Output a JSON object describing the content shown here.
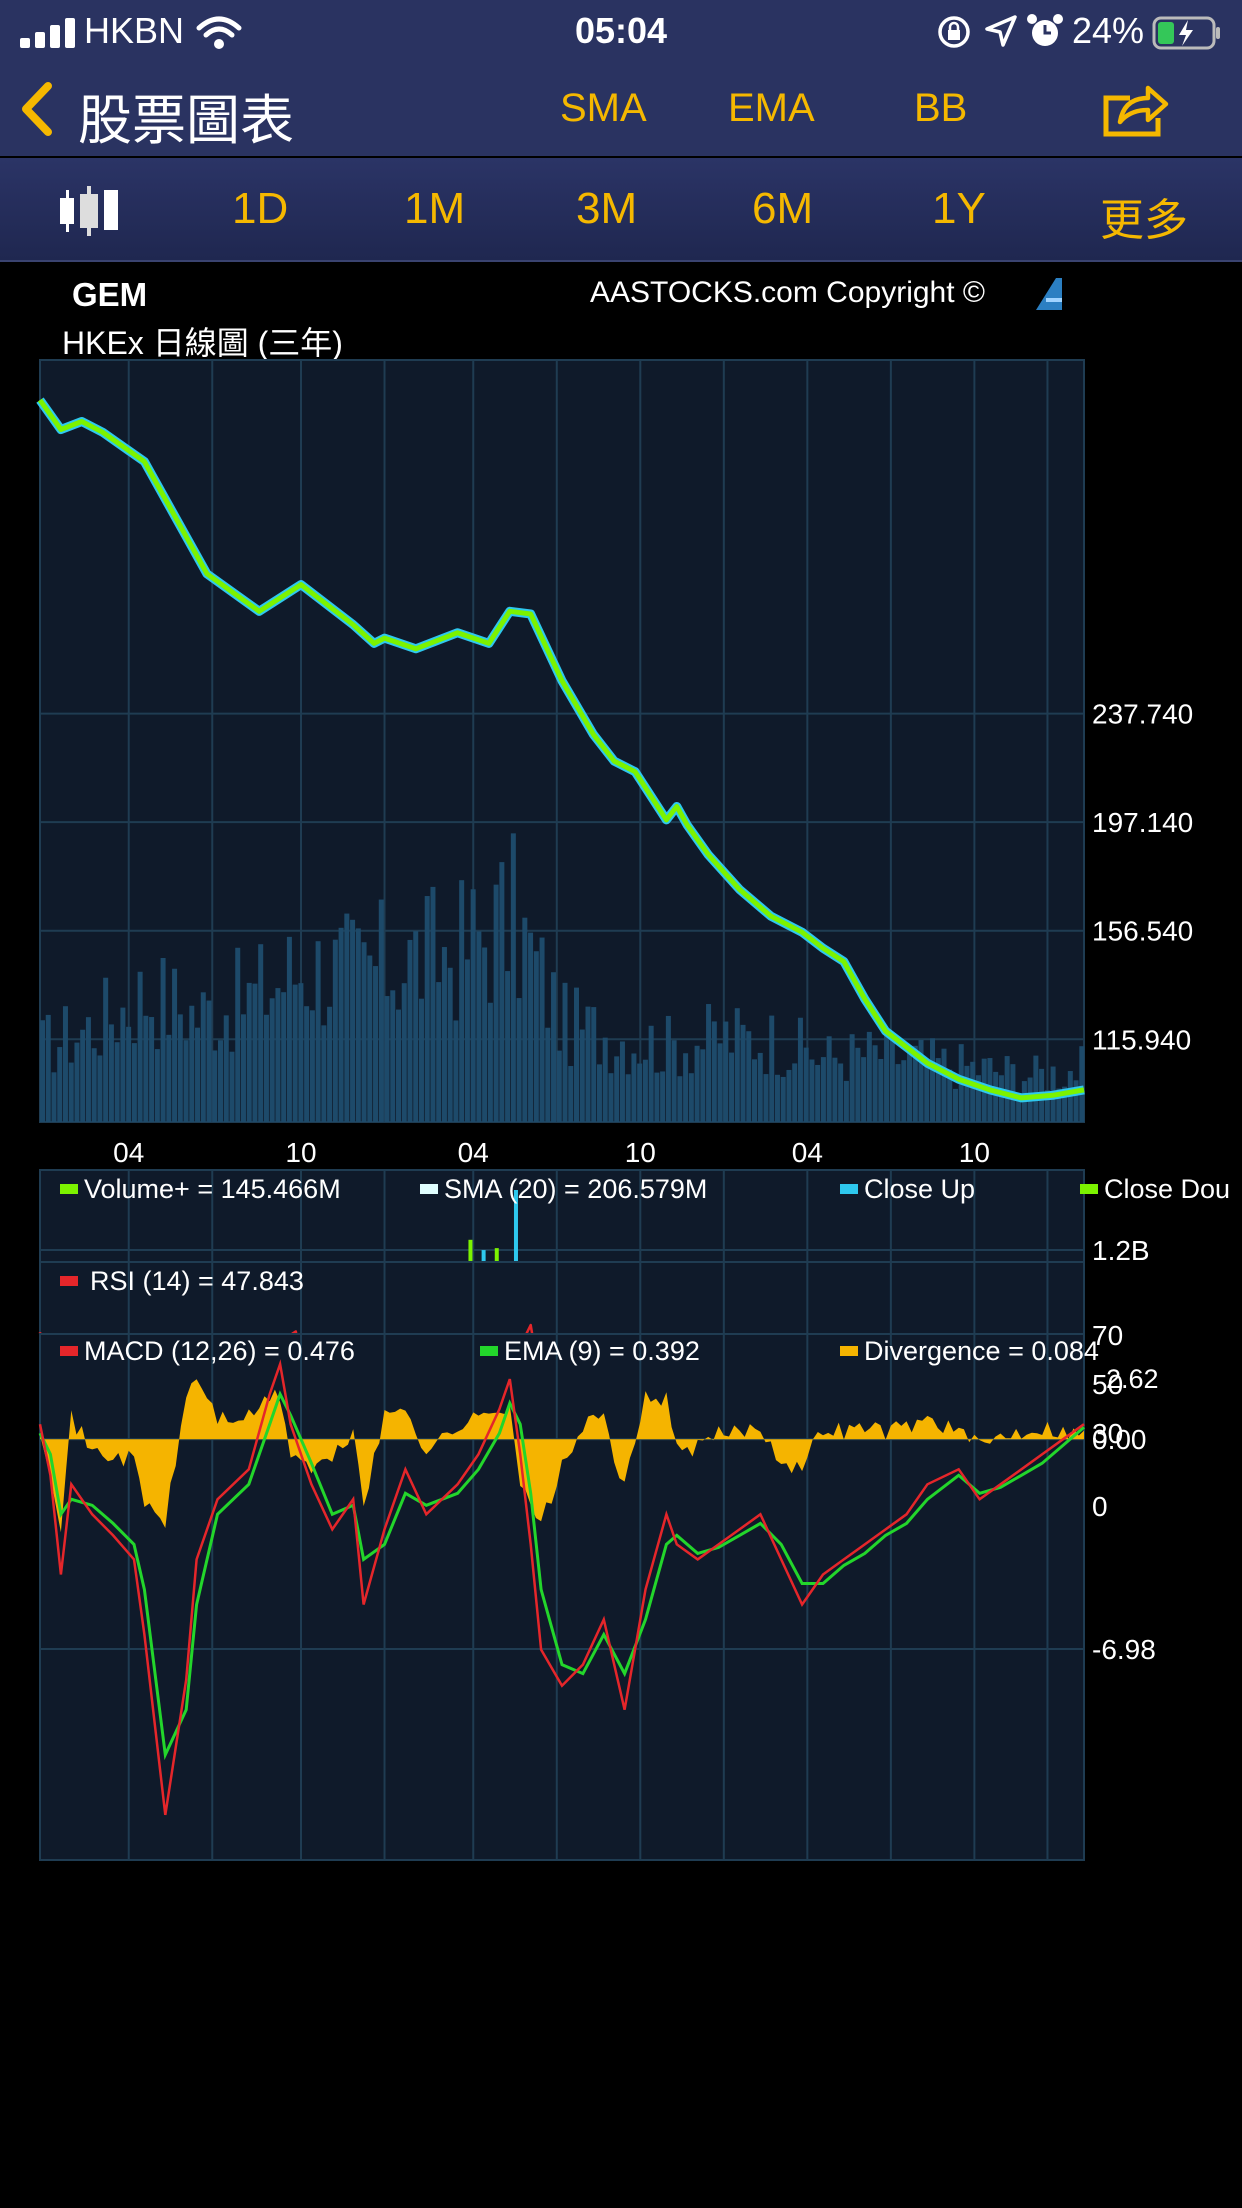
{
  "status_bar": {
    "carrier": "HKBN",
    "time": "05:04",
    "battery_percent": "24%"
  },
  "nav": {
    "title": "股票圖表",
    "buttons": [
      "SMA",
      "EMA",
      "BB"
    ]
  },
  "ranges": [
    "1D",
    "1M",
    "3M",
    "6M",
    "1Y",
    "更多"
  ],
  "chart_header": {
    "symbol": "GEM",
    "copyright": "AASTOCKS.com Copyright ©",
    "subtitle": "HKEx 日線圖 (三年)"
  },
  "colors": {
    "nav_bg": "#2a3361",
    "accent": "#f5b800",
    "panel_bg": "#0f1a2a",
    "grid": "#1f3c52",
    "price_green": "#7cf200",
    "price_cyan": "#2ec8ee",
    "rsi_red": "#e5262a",
    "ema_green": "#23d62b",
    "divergence": "#f5b400"
  },
  "chart_data": [
    {
      "type": "line",
      "panel": "price",
      "xlabels": [
        "04",
        "10",
        "04",
        "10",
        "04",
        "10"
      ],
      "yticks": [
        "237.740",
        "197.140",
        "156.540",
        "115.940"
      ],
      "ylim": [
        85,
        370
      ],
      "x": [
        0,
        2,
        4,
        6,
        10,
        16,
        21,
        25,
        30,
        32,
        33,
        36,
        40,
        43,
        45,
        47,
        50,
        53,
        55,
        57,
        60,
        61,
        62,
        64,
        67,
        70,
        73,
        75,
        77,
        79,
        81,
        83,
        85,
        88,
        91,
        94,
        97,
        100
      ],
      "values": [
        355,
        344,
        347,
        343,
        332,
        290,
        276,
        286,
        271,
        264,
        266,
        262,
        268,
        264,
        276,
        275,
        250,
        230,
        220,
        216,
        198,
        203,
        196,
        185,
        172,
        162,
        156,
        150,
        145,
        131,
        119,
        113,
        107,
        101,
        97,
        94,
        95,
        97
      ],
      "volume_series": {
        "name": "",
        "x": [
          0,
          5,
          10,
          15,
          20,
          25,
          30,
          35,
          40,
          45,
          50,
          55,
          60,
          65,
          70,
          75,
          80,
          85,
          90,
          95,
          100
        ],
        "values": [
          0.35,
          0.45,
          0.6,
          0.5,
          0.58,
          0.72,
          0.7,
          0.75,
          0.8,
          0.95,
          0.45,
          0.4,
          0.35,
          0.4,
          0.38,
          0.3,
          0.32,
          0.28,
          0.25,
          0.22,
          0.25
        ]
      }
    },
    {
      "type": "bar",
      "panel": "volume",
      "legend": [
        "Volume+  = 145.466M",
        "SMA (20)  = 206.579M",
        "Close Up",
        "Close Dou"
      ],
      "yticks": [
        "1.2B"
      ],
      "ylim": [
        0,
        1.8
      ],
      "x": [
        0,
        5,
        10,
        15,
        20,
        25,
        30,
        35,
        40,
        42,
        45,
        50,
        55,
        60,
        65,
        70,
        75,
        80,
        85,
        90,
        95,
        100
      ],
      "sma": [
        0.3,
        0.45,
        0.6,
        0.5,
        0.45,
        0.62,
        0.55,
        0.55,
        0.58,
        0.65,
        0.7,
        0.45,
        0.35,
        0.3,
        0.32,
        0.28,
        0.22,
        0.2,
        0.16,
        0.16,
        0.16,
        0.17
      ],
      "bars_max": [
        0.45,
        0.7,
        0.95,
        0.7,
        0.8,
        1.0,
        0.85,
        0.9,
        0.95,
        1.65,
        0.85,
        0.55,
        0.5,
        0.45,
        0.5,
        0.4,
        0.35,
        0.45,
        0.3,
        0.3,
        0.35,
        0.4
      ]
    },
    {
      "type": "line",
      "panel": "rsi",
      "legend": [
        "RSI (14)  = 47.843"
      ],
      "yticks": [
        "70",
        "50",
        "30",
        "0"
      ],
      "ylim": [
        0,
        100
      ],
      "x": [
        0,
        2,
        4,
        6,
        8,
        10,
        12,
        14,
        15,
        17,
        19,
        21,
        23,
        24,
        26,
        28,
        30,
        32,
        34,
        36,
        38,
        40,
        42,
        44,
        46,
        47,
        49,
        51,
        53,
        55,
        57,
        59,
        61,
        63,
        65,
        67,
        69,
        71,
        73,
        75,
        77,
        79,
        81,
        83,
        85,
        87,
        89,
        91,
        93,
        95,
        97,
        98,
        100
      ],
      "values": [
        73,
        30,
        55,
        40,
        35,
        50,
        38,
        20,
        14,
        28,
        22,
        45,
        35,
        75,
        52,
        38,
        55,
        45,
        18,
        58,
        45,
        50,
        38,
        55,
        60,
        72,
        40,
        25,
        20,
        33,
        48,
        30,
        18,
        45,
        28,
        40,
        32,
        25,
        45,
        30,
        52,
        20,
        15,
        28,
        35,
        22,
        45,
        30,
        50,
        32,
        22,
        55,
        47
      ]
    },
    {
      "type": "line",
      "panel": "macd",
      "legend": [
        "MACD (12,26) = 0.476",
        "EMA (9) = 0.392",
        "Divergence = 0.084"
      ],
      "yticks": [
        "2.62",
        "0.00",
        "-6.98"
      ],
      "ylim": [
        -14,
        3.5
      ],
      "x": [
        0,
        1,
        2,
        3,
        5,
        7,
        9,
        10,
        12,
        14,
        15,
        17,
        20,
        22,
        23,
        24,
        26,
        28,
        30,
        31,
        33,
        35,
        37,
        40,
        42,
        44,
        45,
        46,
        47,
        48,
        50,
        52,
        54,
        56,
        58,
        60,
        61,
        63,
        65,
        67,
        69,
        71,
        73,
        75,
        77,
        79,
        81,
        83,
        85,
        88,
        90,
        92,
        94,
        96,
        98,
        100
      ],
      "macd": [
        0.5,
        -1.2,
        -4.5,
        -1.5,
        -2.5,
        -3.2,
        -4.0,
        -6.5,
        -12.5,
        -8.0,
        -4.0,
        -2.0,
        -1.0,
        1.5,
        2.5,
        0.5,
        -1.5,
        -3.0,
        -2.0,
        -5.5,
        -3.0,
        -1.0,
        -2.5,
        -1.5,
        -0.5,
        1.0,
        2.0,
        -0.5,
        -3.5,
        -7.0,
        -8.2,
        -7.5,
        -6.0,
        -9.0,
        -5.0,
        -2.5,
        -3.5,
        -4.0,
        -3.5,
        -3.0,
        -2.5,
        -4.0,
        -5.5,
        -4.5,
        -4.0,
        -3.5,
        -3.0,
        -2.5,
        -1.5,
        -1.0,
        -2.0,
        -1.5,
        -1.0,
        -0.5,
        0.0,
        0.5
      ],
      "ema": [
        0.2,
        -0.5,
        -2.5,
        -2.0,
        -2.2,
        -2.8,
        -3.5,
        -5.0,
        -10.5,
        -9.0,
        -5.5,
        -2.5,
        -1.5,
        0.5,
        1.5,
        0.8,
        -0.8,
        -2.5,
        -2.2,
        -4.0,
        -3.5,
        -1.8,
        -2.2,
        -1.8,
        -1.0,
        0.2,
        1.2,
        0.5,
        -1.8,
        -5.0,
        -7.5,
        -7.8,
        -6.5,
        -7.8,
        -6.0,
        -3.5,
        -3.2,
        -3.8,
        -3.6,
        -3.2,
        -2.8,
        -3.5,
        -4.8,
        -4.8,
        -4.2,
        -3.8,
        -3.2,
        -2.8,
        -2.0,
        -1.2,
        -1.8,
        -1.6,
        -1.2,
        -0.8,
        -0.2,
        0.4
      ]
    }
  ]
}
